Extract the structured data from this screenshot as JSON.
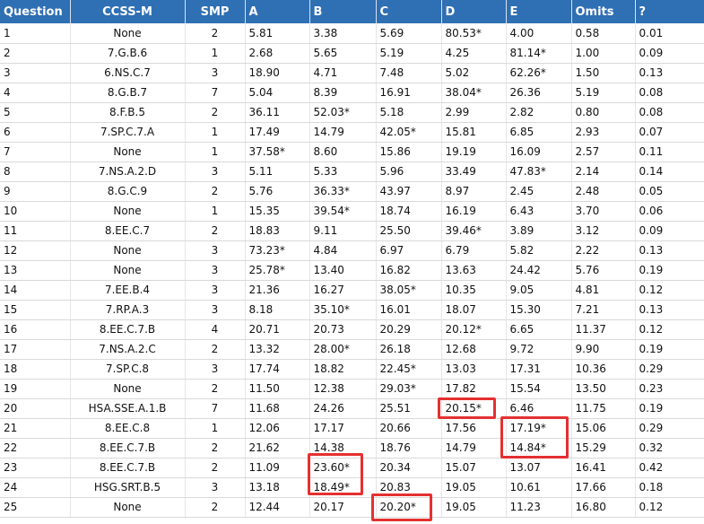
{
  "table": {
    "headers": [
      "Question",
      "CCSS-M",
      "SMP",
      "A",
      "B",
      "C",
      "D",
      "E",
      "Omits",
      "?"
    ],
    "rows": [
      [
        "1",
        "None",
        "2",
        "5.81",
        "3.38",
        "5.69",
        "80.53*",
        "4.00",
        "0.58",
        "0.01"
      ],
      [
        "2",
        "7.G.B.6",
        "1",
        "2.68",
        "5.65",
        "5.19",
        "4.25",
        "81.14*",
        "1.00",
        "0.09"
      ],
      [
        "3",
        "6.NS.C.7",
        "3",
        "18.90",
        "4.71",
        "7.48",
        "5.02",
        "62.26*",
        "1.50",
        "0.13"
      ],
      [
        "4",
        "8.G.B.7",
        "7",
        "5.04",
        "8.39",
        "16.91",
        "38.04*",
        "26.36",
        "5.19",
        "0.08"
      ],
      [
        "5",
        "8.F.B.5",
        "2",
        "36.11",
        "52.03*",
        "5.18",
        "2.99",
        "2.82",
        "0.80",
        "0.08"
      ],
      [
        "6",
        "7.SP.C.7.A",
        "1",
        "17.49",
        "14.79",
        "42.05*",
        "15.81",
        "6.85",
        "2.93",
        "0.07"
      ],
      [
        "7",
        "None",
        "1",
        "37.58*",
        "8.60",
        "15.86",
        "19.19",
        "16.09",
        "2.57",
        "0.11"
      ],
      [
        "8",
        "7.NS.A.2.D",
        "3",
        "5.11",
        "5.33",
        "5.96",
        "33.49",
        "47.83*",
        "2.14",
        "0.14"
      ],
      [
        "9",
        "8.G.C.9",
        "2",
        "5.76",
        "36.33*",
        "43.97",
        "8.97",
        "2.45",
        "2.48",
        "0.05"
      ],
      [
        "10",
        "None",
        "1",
        "15.35",
        "39.54*",
        "18.74",
        "16.19",
        "6.43",
        "3.70",
        "0.06"
      ],
      [
        "11",
        "8.EE.C.7",
        "2",
        "18.83",
        "9.11",
        "25.50",
        "39.46*",
        "3.89",
        "3.12",
        "0.09"
      ],
      [
        "12",
        "None",
        "3",
        "73.23*",
        "4.84",
        "6.97",
        "6.79",
        "5.82",
        "2.22",
        "0.13"
      ],
      [
        "13",
        "None",
        "3",
        "25.78*",
        "13.40",
        "16.82",
        "13.63",
        "24.42",
        "5.76",
        "0.19"
      ],
      [
        "14",
        "7.EE.B.4",
        "3",
        "21.36",
        "16.27",
        "38.05*",
        "10.35",
        "9.05",
        "4.81",
        "0.12"
      ],
      [
        "15",
        "7.RP.A.3",
        "3",
        "8.18",
        "35.10*",
        "16.01",
        "18.07",
        "15.30",
        "7.21",
        "0.13"
      ],
      [
        "16",
        "8.EE.C.7.B",
        "4",
        "20.71",
        "20.73",
        "20.29",
        "20.12*",
        "6.65",
        "11.37",
        "0.12"
      ],
      [
        "17",
        "7.NS.A.2.C",
        "2",
        "13.32",
        "28.00*",
        "26.18",
        "12.68",
        "9.72",
        "9.90",
        "0.19"
      ],
      [
        "18",
        "7.SP.C.8",
        "3",
        "17.74",
        "18.82",
        "22.45*",
        "13.03",
        "17.31",
        "10.36",
        "0.29"
      ],
      [
        "19",
        "None",
        "2",
        "11.50",
        "12.38",
        "29.03*",
        "17.82",
        "15.54",
        "13.50",
        "0.23"
      ],
      [
        "20",
        "HSA.SSE.A.1.B",
        "7",
        "11.68",
        "24.26",
        "25.51",
        "20.15*",
        "6.46",
        "11.75",
        "0.19"
      ],
      [
        "21",
        "8.EE.C.8",
        "1",
        "12.06",
        "17.17",
        "20.66",
        "17.56",
        "17.19*",
        "15.06",
        "0.29"
      ],
      [
        "22",
        "8.EE.C.7.B",
        "2",
        "21.62",
        "14.38",
        "18.76",
        "14.79",
        "14.84*",
        "15.29",
        "0.32"
      ],
      [
        "23",
        "8.EE.C.7.B",
        "2",
        "11.09",
        "23.60*",
        "20.34",
        "15.07",
        "13.07",
        "16.41",
        "0.42"
      ],
      [
        "24",
        "HSG.SRT.B.5",
        "3",
        "13.18",
        "18.49*",
        "20.83",
        "19.05",
        "10.61",
        "17.66",
        "0.18"
      ],
      [
        "25",
        "None",
        "2",
        "12.44",
        "20.17",
        "20.20*",
        "19.05",
        "11.23",
        "16.80",
        "0.12"
      ]
    ]
  },
  "highlight_color": "#e53030",
  "header_color": "#2f6fb3"
}
